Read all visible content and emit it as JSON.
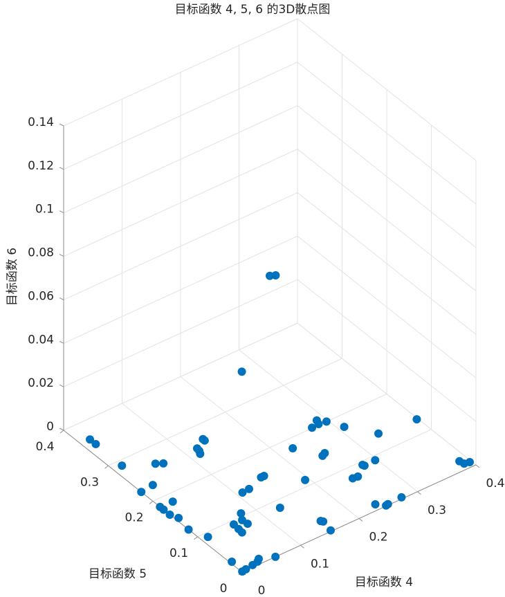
{
  "chart_data": {
    "type": "scatter3d",
    "title": "目标函数 4, 5, 6 的3D散点图",
    "xlabel": "目标函数 4",
    "ylabel": "目标函数 5",
    "zlabel": "目标函数 6",
    "xlim": [
      0,
      0.4
    ],
    "ylim": [
      0,
      0.4
    ],
    "zlim": [
      0,
      0.14
    ],
    "xticks": [
      0,
      0.1,
      0.2,
      0.3,
      0.4
    ],
    "yticks": [
      0,
      0.1,
      0.2,
      0.3,
      0.4
    ],
    "zticks": [
      0,
      0.02,
      0.04,
      0.06,
      0.08,
      0.1,
      0.12,
      0.14
    ],
    "grid": true,
    "series": [
      {
        "color": "#0072bd",
        "x": [
          0.016,
          0.016,
          0.015,
          0.054,
          0.063,
          0.022,
          0,
          0,
          0,
          0.021,
          0,
          0.005,
          0,
          0.011,
          0.139,
          0.139,
          0.12,
          0.119,
          0.116,
          0.214,
          0.15,
          0.155,
          0.109,
          0.121,
          0.129,
          0.079,
          0.071,
          0.056,
          0.055,
          0.072,
          0.054,
          0.003,
          0.001,
          0.008,
          0.021,
          0.031,
          0.036,
          0.057,
          0.224,
          0.194,
          0.273,
          0.288,
          0.285,
          0.297,
          0.252,
          0.246,
          0.309,
          0.337,
          0.398,
          0.297,
          0.277,
          0.278,
          0.256,
          0.248,
          0.155,
          0.157,
          0.153,
          0.237,
          0.247,
          0.251,
          0.275,
          0.387,
          0.389,
          0.397,
          0.2,
          0.21
        ],
        "y": [
          0.362,
          0.349,
          0.289,
          0.265,
          0.259,
          0.229,
          0.226,
          0.184,
          0.176,
          0.183,
          0.162,
          0.149,
          0.12,
          0.091,
          0.27,
          0.266,
          0.258,
          0.252,
          0.246,
          0.281,
          0.154,
          0.154,
          0.142,
          0.143,
          0.084,
          0.106,
          0.093,
          0.092,
          0.08,
          0.082,
          0.071,
          0.027,
          0.001,
          0.002,
          0.004,
          0.006,
          0.01,
          0,
          0.18,
          0.113,
          0.201,
          0.21,
          0.202,
          0.2,
          0.145,
          0.142,
          0.176,
          0.136,
          0.13,
          0.091,
          0.093,
          0.09,
          0.076,
          0.077,
          0.027,
          0.024,
          0.002,
          0.012,
          0.001,
          0.002,
          0.003,
          0.02,
          0.012,
          0.01,
          0.2,
          0.2
        ],
        "z": [
          0,
          0,
          0,
          0,
          0,
          0,
          0,
          0,
          0,
          0,
          0,
          0,
          0,
          0,
          0,
          0,
          0,
          0,
          0,
          0.02,
          0,
          0,
          0,
          0,
          0,
          0,
          0,
          0,
          0,
          0,
          0,
          0,
          0,
          0,
          0,
          0,
          0,
          0,
          0,
          0,
          0,
          0,
          0,
          0,
          0,
          0,
          0,
          0,
          0,
          0,
          0,
          0,
          0,
          0,
          0,
          0,
          0,
          0,
          0,
          0,
          0,
          0,
          0,
          0,
          0.079,
          0.078
        ]
      }
    ]
  }
}
